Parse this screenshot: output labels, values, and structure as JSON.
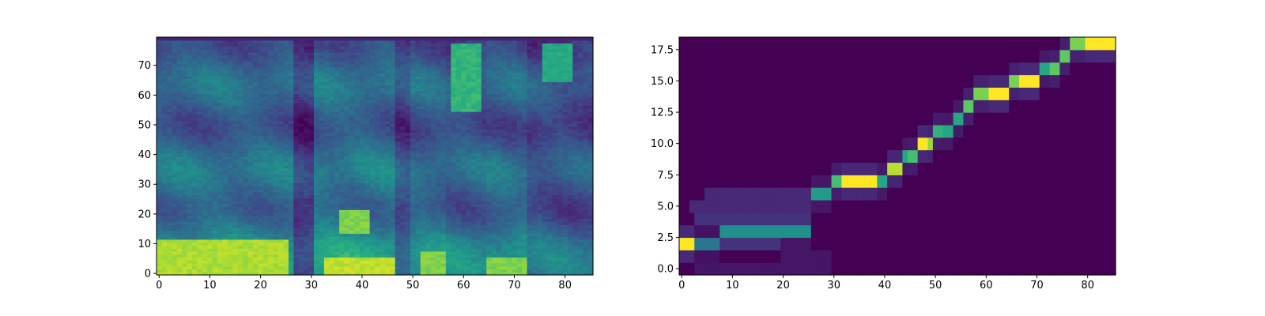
{
  "chart_data": [
    {
      "type": "heatmap",
      "title": "",
      "xlabel": "",
      "ylabel": "",
      "xlim": [
        -0.5,
        85.5
      ],
      "ylim": [
        -0.5,
        79.5
      ],
      "n_cols": 86,
      "n_rows": 80,
      "colormap": "viridis",
      "x_ticks": [
        0,
        10,
        20,
        30,
        40,
        50,
        60,
        70,
        80
      ],
      "y_ticks": [
        0,
        10,
        20,
        30,
        40,
        50,
        60,
        70
      ],
      "x_tick_labels": [
        "0",
        "10",
        "20",
        "30",
        "40",
        "50",
        "60",
        "70",
        "80"
      ],
      "y_tick_labels": [
        "0",
        "10",
        "20",
        "30",
        "40",
        "50",
        "60",
        "70"
      ],
      "column_intensity_segments": [
        {
          "x_start": 0,
          "x_end": 27,
          "level": 0.75
        },
        {
          "x_start": 27,
          "x_end": 31,
          "level": 0.35
        },
        {
          "x_start": 31,
          "x_end": 47,
          "level": 0.8
        },
        {
          "x_start": 47,
          "x_end": 50,
          "level": 0.5
        },
        {
          "x_start": 50,
          "x_end": 57,
          "level": 0.7
        },
        {
          "x_start": 57,
          "x_end": 65,
          "level": 0.65
        },
        {
          "x_start": 65,
          "x_end": 73,
          "level": 0.7
        },
        {
          "x_start": 73,
          "x_end": 86,
          "level": 0.55
        }
      ],
      "bright_regions": [
        {
          "x": [
            0,
            26
          ],
          "y": [
            0,
            12
          ],
          "level": 0.92
        },
        {
          "x": [
            33,
            47
          ],
          "y": [
            0,
            6
          ],
          "level": 0.95
        },
        {
          "x": [
            36,
            42
          ],
          "y": [
            14,
            22
          ],
          "level": 0.85
        },
        {
          "x": [
            52,
            57
          ],
          "y": [
            0,
            8
          ],
          "level": 0.85
        },
        {
          "x": [
            65,
            73
          ],
          "y": [
            0,
            6
          ],
          "level": 0.85
        },
        {
          "x": [
            58,
            64
          ],
          "y": [
            55,
            78
          ],
          "level": 0.7
        },
        {
          "x": [
            76,
            82
          ],
          "y": [
            65,
            78
          ],
          "level": 0.65
        }
      ]
    },
    {
      "type": "heatmap",
      "title": "",
      "xlabel": "",
      "ylabel": "",
      "xlim": [
        -0.5,
        85.5
      ],
      "ylim": [
        -0.5,
        18.5
      ],
      "n_cols": 86,
      "n_rows": 19,
      "colormap": "viridis",
      "x_ticks": [
        0,
        10,
        20,
        30,
        40,
        50,
        60,
        70,
        80
      ],
      "y_ticks": [
        0,
        2.5,
        5,
        7.5,
        10,
        12.5,
        15,
        17.5
      ],
      "x_tick_labels": [
        "0",
        "10",
        "20",
        "30",
        "40",
        "50",
        "60",
        "70",
        "80"
      ],
      "y_tick_labels": [
        "0.0",
        "2.5",
        "5.0",
        "7.5",
        "10.0",
        "12.5",
        "15.0",
        "17.5"
      ],
      "alignment_path": [
        {
          "row": 2,
          "x_start": 0,
          "x_end": 3,
          "level": 1.0
        },
        {
          "row": 2,
          "x_start": 3,
          "x_end": 8,
          "level": 0.4
        },
        {
          "row": 3,
          "x_start": 8,
          "x_end": 26,
          "level": 0.5
        },
        {
          "row": 6,
          "x_start": 26,
          "x_end": 30,
          "level": 0.55
        },
        {
          "row": 7,
          "x_start": 30,
          "x_end": 32,
          "level": 0.7
        },
        {
          "row": 7,
          "x_start": 32,
          "x_end": 39,
          "level": 1.0
        },
        {
          "row": 7,
          "x_start": 39,
          "x_end": 41,
          "level": 0.6
        },
        {
          "row": 8,
          "x_start": 41,
          "x_end": 44,
          "level": 0.9
        },
        {
          "row": 9,
          "x_start": 44,
          "x_end": 45,
          "level": 0.6
        },
        {
          "row": 9,
          "x_start": 45,
          "x_end": 47,
          "level": 0.7
        },
        {
          "row": 10,
          "x_start": 47,
          "x_end": 49,
          "level": 1.0
        },
        {
          "row": 10,
          "x_start": 49,
          "x_end": 50,
          "level": 0.85
        },
        {
          "row": 11,
          "x_start": 50,
          "x_end": 52,
          "level": 0.65
        },
        {
          "row": 11,
          "x_start": 52,
          "x_end": 54,
          "level": 0.6
        },
        {
          "row": 12,
          "x_start": 54,
          "x_end": 56,
          "level": 0.6
        },
        {
          "row": 13,
          "x_start": 56,
          "x_end": 58,
          "level": 0.75
        },
        {
          "row": 14,
          "x_start": 58,
          "x_end": 61,
          "level": 0.8
        },
        {
          "row": 14,
          "x_start": 61,
          "x_end": 65,
          "level": 1.0
        },
        {
          "row": 15,
          "x_start": 65,
          "x_end": 67,
          "level": 0.8
        },
        {
          "row": 15,
          "x_start": 67,
          "x_end": 71,
          "level": 1.0
        },
        {
          "row": 16,
          "x_start": 71,
          "x_end": 73,
          "level": 0.6
        },
        {
          "row": 16,
          "x_start": 73,
          "x_end": 75,
          "level": 0.75
        },
        {
          "row": 17,
          "x_start": 75,
          "x_end": 77,
          "level": 0.75
        },
        {
          "row": 18,
          "x_start": 77,
          "x_end": 80,
          "level": 0.8
        },
        {
          "row": 18,
          "x_start": 80,
          "x_end": 86,
          "level": 1.0
        }
      ],
      "faint_regions": [
        {
          "row": 2,
          "x_start": 8,
          "x_end": 20,
          "level": 0.15
        },
        {
          "row": 4,
          "x_start": 3,
          "x_end": 26,
          "level": 0.15
        },
        {
          "row": 5,
          "x_start": 2,
          "x_end": 26,
          "level": 0.12
        },
        {
          "row": 6,
          "x_start": 5,
          "x_end": 26,
          "level": 0.12
        },
        {
          "row": 0,
          "x_start": 3,
          "x_end": 30,
          "level": 0.06
        },
        {
          "row": 1,
          "x_start": 20,
          "x_end": 30,
          "level": 0.06
        }
      ]
    }
  ]
}
